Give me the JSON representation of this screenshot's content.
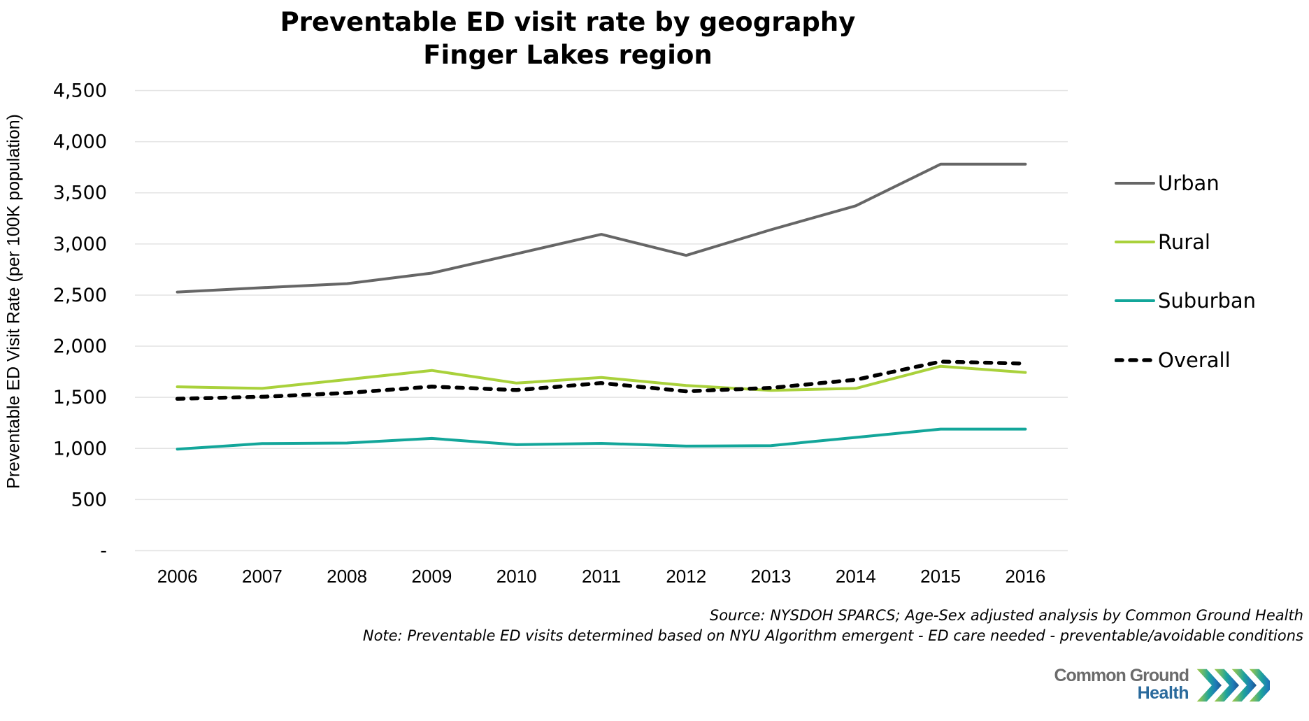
{
  "chart_data": {
    "type": "line",
    "title": "Preventable ED visit rate by geography",
    "subtitle": "Finger Lakes region",
    "xlabel": "",
    "ylabel": "Preventable ED Visit Rate (per 100K population)",
    "ylim": [
      0,
      4500
    ],
    "y_ticks": [
      0,
      500,
      1000,
      1500,
      2000,
      2500,
      3000,
      3500,
      4000,
      4500
    ],
    "y_tick_labels": [
      "-",
      "500",
      "1,000",
      "1,500",
      "2,000",
      "2,500",
      "3,000",
      "3,500",
      "4,000",
      "4,500"
    ],
    "grid": true,
    "legend_position": "right",
    "categories": [
      "2006",
      "2007",
      "2008",
      "2009",
      "2010",
      "2011",
      "2012",
      "2013",
      "2014",
      "2015",
      "2016"
    ],
    "series": [
      {
        "name": "Urban",
        "color": "#666666",
        "style": "solid",
        "values": [
          2530,
          2572,
          2612,
          2715,
          2904,
          3094,
          2888,
          3139,
          3373,
          3780,
          3780
        ]
      },
      {
        "name": "Rural",
        "color": "#a9d13b",
        "style": "solid",
        "values": [
          1603,
          1587,
          1674,
          1763,
          1639,
          1694,
          1616,
          1568,
          1587,
          1804,
          1743
        ]
      },
      {
        "name": "Suburban",
        "color": "#13a69a",
        "style": "solid",
        "values": [
          993,
          1048,
          1053,
          1098,
          1037,
          1050,
          1023,
          1028,
          1108,
          1189,
          1189
        ]
      },
      {
        "name": "Overall",
        "color": "#000000",
        "style": "dashed",
        "values": [
          1486,
          1505,
          1543,
          1605,
          1571,
          1639,
          1559,
          1592,
          1672,
          1849,
          1830
        ]
      }
    ],
    "annotations": [
      "Source: NYSDOH SPARCS; Age-Sex adjusted analysis by Common Ground Health",
      "Note: Preventable ED visits determined based on NYU Algorithm emergent - ED care needed - preventable/avoidable conditions"
    ]
  },
  "logo": {
    "line1": "Common Ground",
    "line2": "Health",
    "colors": [
      "#a8c93a",
      "#6dbb6a",
      "#1ea39c",
      "#1e7bb8",
      "#1d4f86"
    ]
  }
}
